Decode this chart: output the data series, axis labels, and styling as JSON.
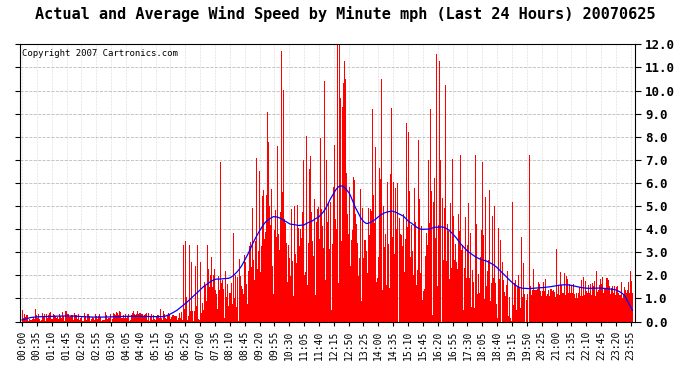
{
  "title": "Actual and Average Wind Speed by Minute mph (Last 24 Hours) 20070625",
  "copyright": "Copyright 2007 Cartronics.com",
  "ylim": [
    0.0,
    12.0
  ],
  "yticks": [
    0.0,
    1.0,
    2.0,
    3.0,
    4.0,
    5.0,
    6.0,
    7.0,
    8.0,
    9.0,
    10.0,
    11.0,
    12.0
  ],
  "bar_color": "#FF0000",
  "line_color": "#0000FF",
  "bg_color": "#FFFFFF",
  "grid_color": "#BBBBBB",
  "title_fontsize": 11,
  "copyright_fontsize": 6.5,
  "tick_fontsize": 7,
  "ytick_fontsize": 9,
  "xtick_step_minutes": 35
}
